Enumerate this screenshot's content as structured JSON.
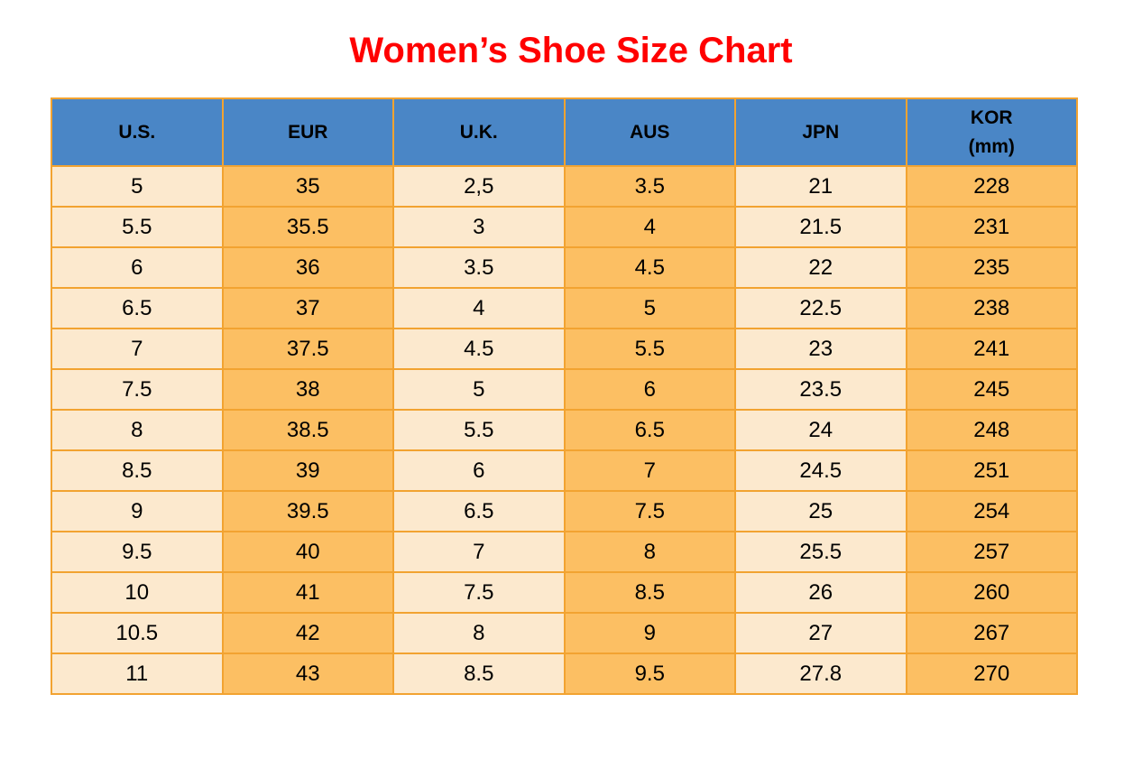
{
  "colors": {
    "page_bg": "#FFFFFF",
    "title": "#FF0000",
    "header_bg": "#4A86C6",
    "header_text": "#000000",
    "cell_text": "#000000",
    "cream_cell": "#FCE9CE",
    "orange_cell": "#FCBF63",
    "border": "#F2A331"
  },
  "chart_data": {
    "type": "table",
    "title": "Women’s Shoe Size Chart",
    "headers": [
      {
        "title": "U.S.",
        "subtitle": ""
      },
      {
        "title": "EUR",
        "subtitle": ""
      },
      {
        "title": "U.K.",
        "subtitle": ""
      },
      {
        "title": "AUS",
        "subtitle": ""
      },
      {
        "title": "JPN",
        "subtitle": ""
      },
      {
        "title": "KOR",
        "subtitle": "(mm)"
      }
    ],
    "column_style": [
      "cream",
      "orange",
      "cream",
      "orange",
      "cream",
      "orange"
    ],
    "rows": [
      [
        "5",
        "35",
        "2,5",
        "3.5",
        "21",
        "228"
      ],
      [
        "5.5",
        "35.5",
        "3",
        "4",
        "21.5",
        "231"
      ],
      [
        "6",
        "36",
        "3.5",
        "4.5",
        "22",
        "235"
      ],
      [
        "6.5",
        "37",
        "4",
        "5",
        "22.5",
        "238"
      ],
      [
        "7",
        "37.5",
        "4.5",
        "5.5",
        "23",
        "241"
      ],
      [
        "7.5",
        "38",
        "5",
        "6",
        "23.5",
        "245"
      ],
      [
        "8",
        "38.5",
        "5.5",
        "6.5",
        "24",
        "248"
      ],
      [
        "8.5",
        "39",
        "6",
        "7",
        "24.5",
        "251"
      ],
      [
        "9",
        "39.5",
        "6.5",
        "7.5",
        "25",
        "254"
      ],
      [
        "9.5",
        "40",
        "7",
        "8",
        "25.5",
        "257"
      ],
      [
        "10",
        "41",
        "7.5",
        "8.5",
        "26",
        "260"
      ],
      [
        "10.5",
        "42",
        "8",
        "9",
        "27",
        "267"
      ],
      [
        "11",
        "43",
        "8.5",
        "9.5",
        "27.8",
        "270"
      ]
    ]
  }
}
